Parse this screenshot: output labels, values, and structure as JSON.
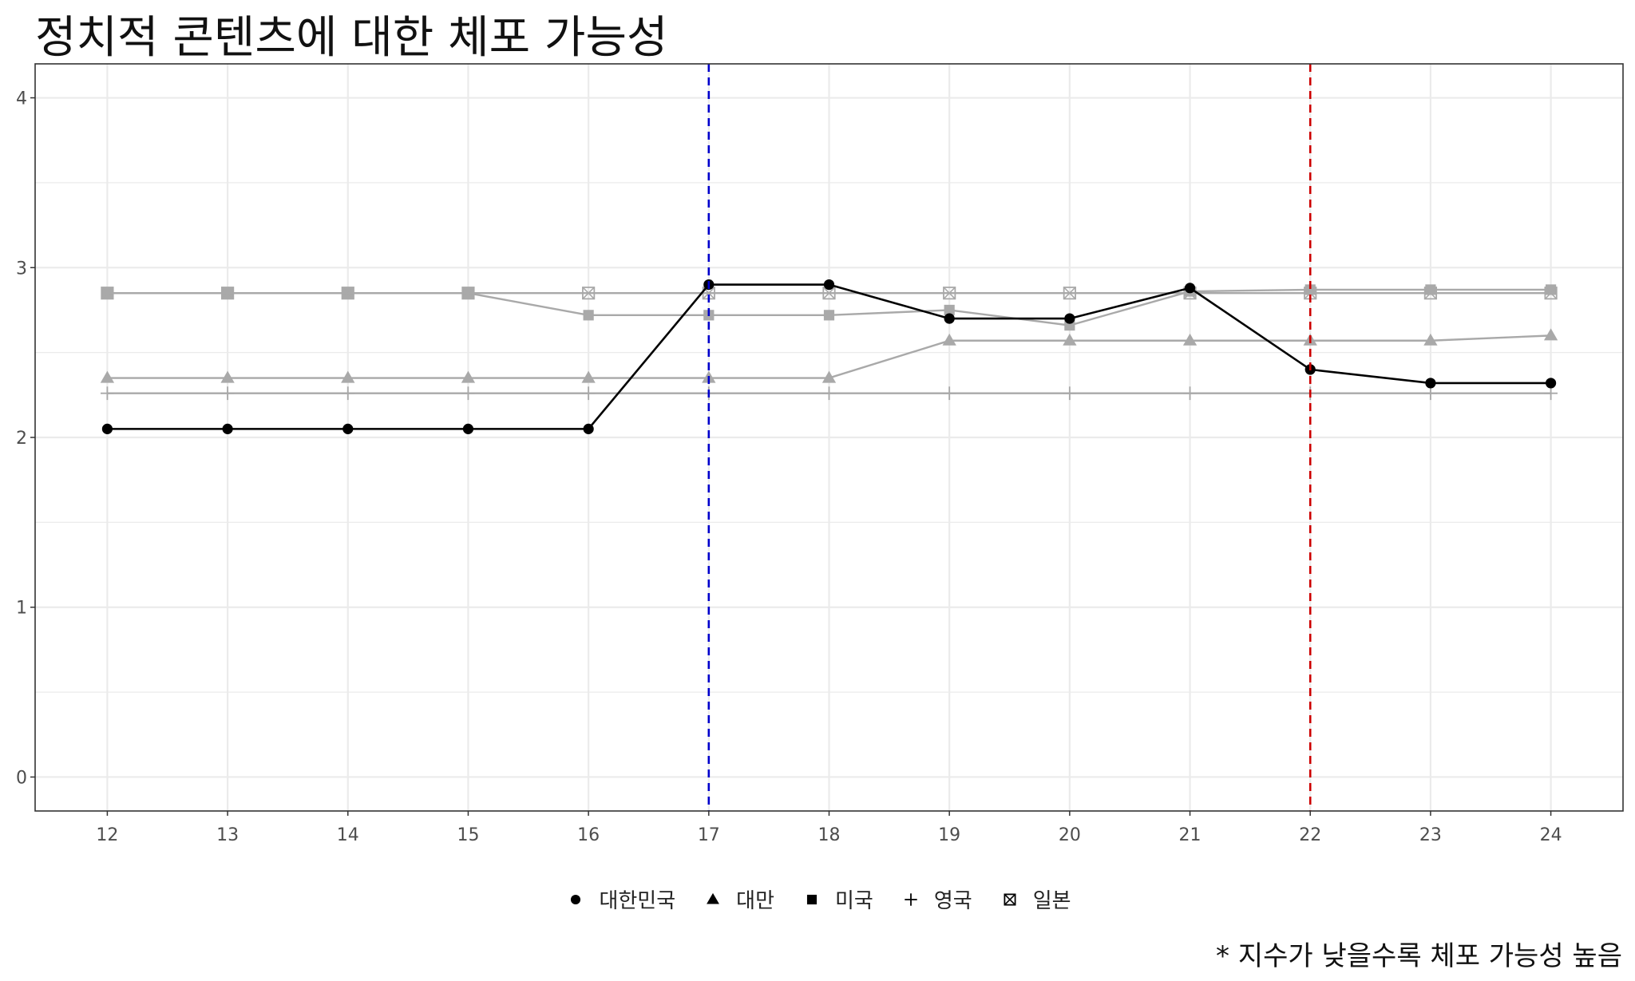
{
  "title": "정치적 콘텐츠에 대한 체포 가능성",
  "caption": "* 지수가 낮을수록 체포 가능성 높음",
  "colors": {
    "highlight_series": "#000000",
    "other_series": "#a9a9a9",
    "vline_17": "#0000cc",
    "vline_22": "#cc0000",
    "grid": "#ebebeb",
    "panel_border": "#333333"
  },
  "chart_data": {
    "type": "line",
    "title": "정치적 콘텐츠에 대한 체포 가능성",
    "xlabel": "",
    "ylabel": "",
    "x": [
      12,
      13,
      14,
      15,
      16,
      17,
      18,
      19,
      20,
      21,
      22,
      23,
      24
    ],
    "xlim": [
      11.4,
      24.6
    ],
    "ylim": [
      -0.2,
      4.2
    ],
    "x_ticks": [
      12,
      13,
      14,
      15,
      16,
      17,
      18,
      19,
      20,
      21,
      22,
      23,
      24
    ],
    "y_ticks": [
      0,
      1,
      2,
      3,
      4
    ],
    "grid": true,
    "legend_position": "bottom",
    "vlines": [
      {
        "x": 17,
        "color": "#0000cc",
        "style": "dashed"
      },
      {
        "x": 22,
        "color": "#cc0000",
        "style": "dashed"
      }
    ],
    "series": [
      {
        "name": "대한민국",
        "shape": "circle",
        "highlight": true,
        "values": [
          2.05,
          2.05,
          2.05,
          2.05,
          2.05,
          2.9,
          2.9,
          2.7,
          2.7,
          2.88,
          2.4,
          2.32,
          2.32
        ]
      },
      {
        "name": "대만",
        "shape": "triangle",
        "highlight": false,
        "values": [
          2.35,
          2.35,
          2.35,
          2.35,
          2.35,
          2.35,
          2.35,
          2.57,
          2.57,
          2.57,
          2.57,
          2.57,
          2.6
        ]
      },
      {
        "name": "미국",
        "shape": "square",
        "highlight": false,
        "values": [
          2.85,
          2.85,
          2.85,
          2.85,
          2.72,
          2.72,
          2.72,
          2.75,
          2.66,
          2.86,
          2.87,
          2.87,
          2.87
        ]
      },
      {
        "name": "영국",
        "shape": "plus",
        "highlight": false,
        "values": [
          2.26,
          2.26,
          2.26,
          2.26,
          2.26,
          2.26,
          2.26,
          2.26,
          2.26,
          2.26,
          2.26,
          2.26,
          2.26
        ]
      },
      {
        "name": "일본",
        "shape": "boxcross",
        "highlight": false,
        "values": [
          2.85,
          2.85,
          2.85,
          2.85,
          2.85,
          2.85,
          2.85,
          2.85,
          2.85,
          2.85,
          2.85,
          2.85,
          2.85
        ]
      }
    ]
  }
}
